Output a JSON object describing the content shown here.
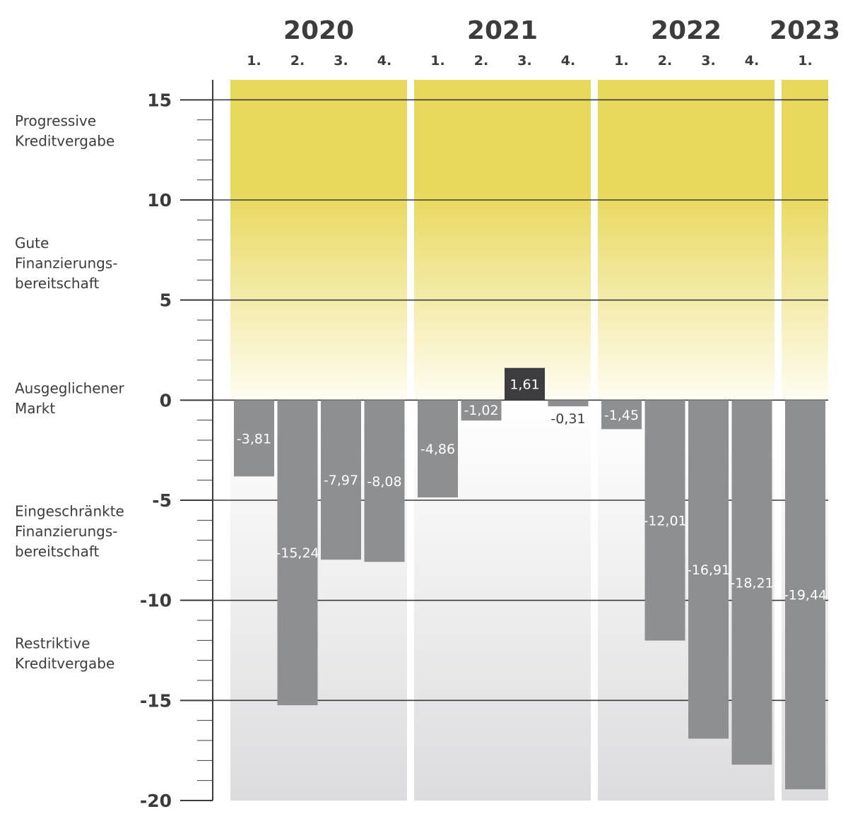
{
  "chart_data": {
    "type": "bar",
    "title": "",
    "xlabel": "",
    "ylabel": "",
    "ylim": [
      -20,
      16
    ],
    "y_ticks": [
      15,
      10,
      5,
      0,
      -5,
      -10,
      -15,
      -20
    ],
    "y_tick_labels": [
      "15",
      "10",
      "5",
      "0",
      "-5",
      "-10",
      "-15",
      "-20"
    ],
    "years": [
      {
        "label": "2020",
        "quarters": [
          "1.",
          "2.",
          "3.",
          "4."
        ],
        "values": [
          -3.81,
          -15.24,
          -7.97,
          -8.08
        ],
        "value_labels": [
          "-3,81",
          "-15,24",
          "-7,97",
          "-8,08"
        ]
      },
      {
        "label": "2021",
        "quarters": [
          "1.",
          "2.",
          "3.",
          "4."
        ],
        "values": [
          -4.86,
          -1.02,
          1.61,
          -0.31
        ],
        "value_labels": [
          "-4,86",
          "-1,02",
          "1,61",
          "-0,31"
        ]
      },
      {
        "label": "2022",
        "quarters": [
          "1.",
          "2.",
          "3.",
          "4."
        ],
        "values": [
          -1.45,
          -12.01,
          -16.91,
          -18.21
        ],
        "value_labels": [
          "-1,45",
          "-12,01",
          "-16,91",
          "-18,21"
        ]
      },
      {
        "label": "2023",
        "quarters": [
          "1."
        ],
        "values": [
          -19.44
        ],
        "value_labels": [
          "-19,44"
        ]
      }
    ],
    "zone_labels": [
      {
        "lines": [
          "Progressive",
          "Kreditvergabe"
        ],
        "y_value": 13.7
      },
      {
        "lines": [
          "Gute",
          "Finanzierungs-",
          "bereitschaft"
        ],
        "y_value": 7.6
      },
      {
        "lines": [
          "Ausgeglichener",
          "Markt"
        ],
        "y_value": 0.35
      },
      {
        "lines": [
          "Eingeschränkte",
          "Finanzierungs-",
          "bereitschaft"
        ],
        "y_value": -5.8
      },
      {
        "lines": [
          "Restriktive",
          "Kreditvergabe"
        ],
        "y_value": -12.4
      }
    ],
    "colors": {
      "positive_zone_top": "#e8d85c",
      "positive_zone_bottom": "#fffdf2",
      "negative_zone_top": "#ffffff",
      "negative_zone_bottom": "#dcdcde",
      "bar": "#8e8f91",
      "bar_positive": "#3d3d3f",
      "gridline": "#3c3c3c",
      "text": "#3c3c3c"
    }
  }
}
